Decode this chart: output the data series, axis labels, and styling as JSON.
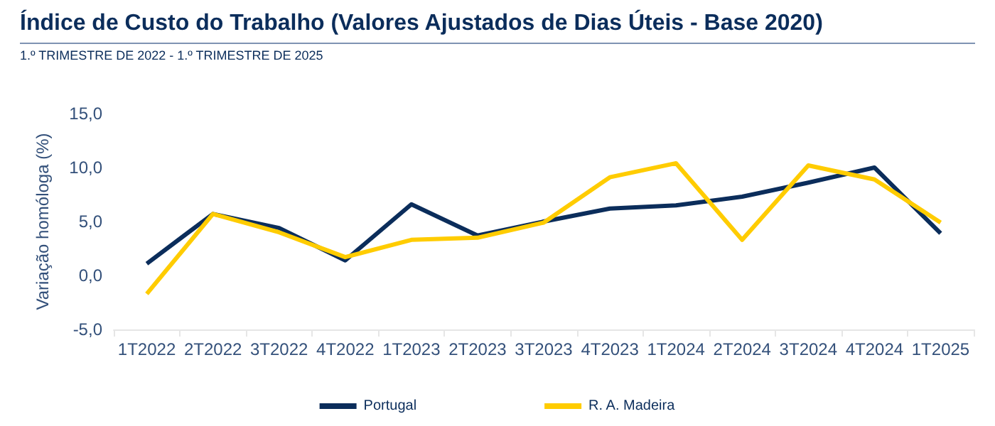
{
  "chart_data": {
    "type": "line",
    "title": "Índice de Custo do Trabalho (Valores Ajustados de Dias Úteis - Base 2020)",
    "subtitle": "1.º TRIMESTRE DE 2022 - 1.º TRIMESTRE DE 2025",
    "ylabel": "Variação homóloga (%)",
    "categories": [
      "1T2022",
      "2T2022",
      "3T2022",
      "4T2022",
      "1T2023",
      "2T2023",
      "3T2023",
      "4T2023",
      "1T2024",
      "2T2024",
      "3T2024",
      "4T2024",
      "1T2025"
    ],
    "series": [
      {
        "name": "Portugal",
        "color": "#0b2d5b",
        "values": [
          1.1,
          5.7,
          4.4,
          1.4,
          6.6,
          3.7,
          5.0,
          6.2,
          6.5,
          7.3,
          8.6,
          10.0,
          3.9
        ]
      },
      {
        "name": "R. A. Madeira",
        "color": "#ffcc00",
        "values": [
          -1.7,
          5.7,
          4.0,
          1.7,
          3.3,
          3.5,
          4.9,
          9.1,
          10.4,
          3.3,
          10.2,
          8.9,
          4.9
        ]
      }
    ],
    "ylim": [
      -5,
      15
    ],
    "yticks": [
      {
        "value": -5,
        "label": "-5,0"
      },
      {
        "value": 0,
        "label": "0,0"
      },
      {
        "value": 5,
        "label": "5,0"
      },
      {
        "value": 10,
        "label": "10,0"
      },
      {
        "value": 15,
        "label": "15,0"
      }
    ],
    "grid": false,
    "legend": "bottom",
    "marker": "none",
    "line_style": "solid"
  }
}
